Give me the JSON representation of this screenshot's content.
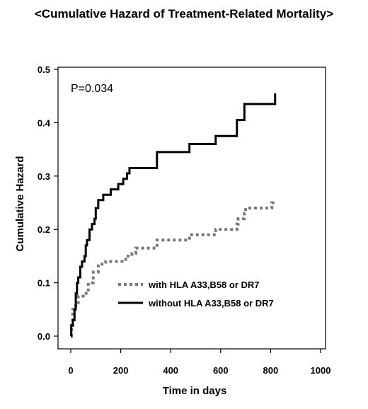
{
  "chart_data": {
    "type": "line",
    "title": "<Cumulative Hazard of Treatment-Related Mortality>",
    "xlabel": "Time in days",
    "ylabel": "Cumulative Hazard",
    "xlim": [
      0,
      1000
    ],
    "ylim": [
      0,
      0.5
    ],
    "xticks": [
      "0",
      "200",
      "400",
      "600",
      "800",
      "1000"
    ],
    "yticks": [
      "0.0",
      "0.1",
      "0.2",
      "0.3",
      "0.4",
      "0.5"
    ],
    "grid": false,
    "legend": "inside-lower-middle",
    "annotation": "P=0.034",
    "series": [
      {
        "name": "with HLA A33,B58 or DR7",
        "style": "dotted",
        "color": "#777777",
        "points": [
          [
            0,
            0.0
          ],
          [
            3,
            0.02
          ],
          [
            8,
            0.05
          ],
          [
            20,
            0.06
          ],
          [
            30,
            0.075
          ],
          [
            50,
            0.08
          ],
          [
            70,
            0.1
          ],
          [
            90,
            0.12
          ],
          [
            110,
            0.135
          ],
          [
            140,
            0.14
          ],
          [
            200,
            0.14
          ],
          [
            220,
            0.15
          ],
          [
            245,
            0.155
          ],
          [
            260,
            0.165
          ],
          [
            340,
            0.165
          ],
          [
            345,
            0.18
          ],
          [
            470,
            0.18
          ],
          [
            475,
            0.19
          ],
          [
            570,
            0.19
          ],
          [
            580,
            0.2
          ],
          [
            640,
            0.2
          ],
          [
            665,
            0.21
          ],
          [
            670,
            0.22
          ],
          [
            695,
            0.23
          ],
          [
            700,
            0.24
          ],
          [
            790,
            0.24
          ],
          [
            800,
            0.24
          ],
          [
            805,
            0.25
          ],
          [
            820,
            0.25
          ]
        ]
      },
      {
        "name": "without HLA A33,B58 or DR7",
        "style": "solid",
        "color": "#000000",
        "points": [
          [
            0,
            0.0
          ],
          [
            2,
            0.02
          ],
          [
            8,
            0.03
          ],
          [
            15,
            0.05
          ],
          [
            20,
            0.08
          ],
          [
            25,
            0.1
          ],
          [
            30,
            0.11
          ],
          [
            38,
            0.13
          ],
          [
            45,
            0.14
          ],
          [
            55,
            0.15
          ],
          [
            60,
            0.17
          ],
          [
            65,
            0.18
          ],
          [
            75,
            0.2
          ],
          [
            85,
            0.21
          ],
          [
            95,
            0.22
          ],
          [
            100,
            0.24
          ],
          [
            110,
            0.255
          ],
          [
            130,
            0.265
          ],
          [
            160,
            0.275
          ],
          [
            190,
            0.285
          ],
          [
            210,
            0.295
          ],
          [
            225,
            0.305
          ],
          [
            235,
            0.315
          ],
          [
            340,
            0.315
          ],
          [
            345,
            0.345
          ],
          [
            470,
            0.345
          ],
          [
            475,
            0.36
          ],
          [
            575,
            0.36
          ],
          [
            580,
            0.375
          ],
          [
            660,
            0.375
          ],
          [
            665,
            0.405
          ],
          [
            690,
            0.405
          ],
          [
            695,
            0.435
          ],
          [
            815,
            0.435
          ],
          [
            818,
            0.455
          ]
        ]
      }
    ]
  }
}
